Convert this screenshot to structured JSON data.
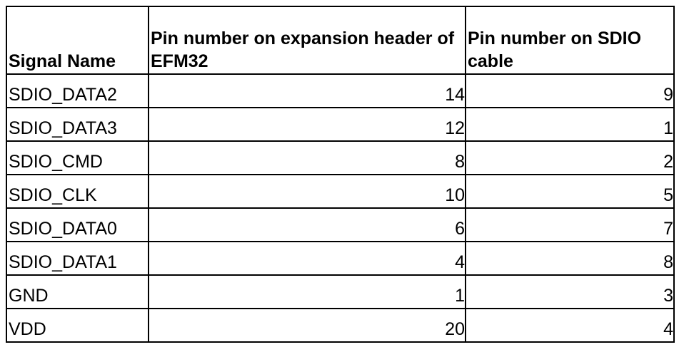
{
  "table": {
    "headers": [
      "Signal Name",
      "Pin number on expansion header of EFM32",
      "Pin number on SDIO cable"
    ],
    "rows": [
      {
        "signal": "SDIO_DATA2",
        "efm32_pin": "14",
        "sdio_pin": "9"
      },
      {
        "signal": "SDIO_DATA3",
        "efm32_pin": "12",
        "sdio_pin": "1"
      },
      {
        "signal": "SDIO_CMD",
        "efm32_pin": "8",
        "sdio_pin": "2"
      },
      {
        "signal": "SDIO_CLK",
        "efm32_pin": "10",
        "sdio_pin": "5"
      },
      {
        "signal": "SDIO_DATA0",
        "efm32_pin": "6",
        "sdio_pin": "7"
      },
      {
        "signal": "SDIO_DATA1",
        "efm32_pin": "4",
        "sdio_pin": "8"
      },
      {
        "signal": "GND",
        "efm32_pin": "1",
        "sdio_pin": "3"
      },
      {
        "signal": "VDD",
        "efm32_pin": "20",
        "sdio_pin": "4"
      }
    ]
  }
}
